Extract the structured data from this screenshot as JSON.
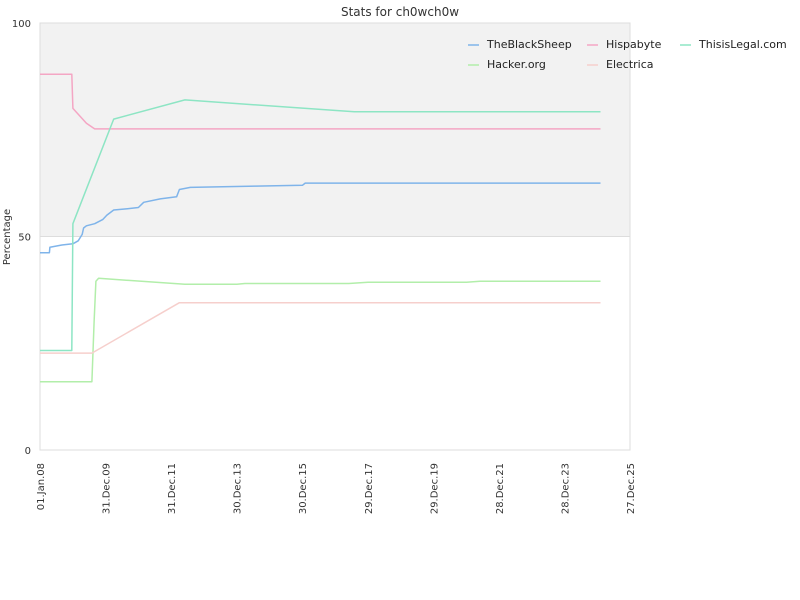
{
  "chart_data": {
    "type": "line",
    "title": "Stats for ch0wch0w",
    "ylabel": "Percentage",
    "xlabel": "",
    "ylim": [
      0,
      100
    ],
    "y_ticks": [
      "0",
      "50",
      "100"
    ],
    "x_range": [
      "2008-01-01",
      "2025-12-27"
    ],
    "x_ticks": [
      {
        "date": "2008-01-01",
        "label": "01.Jan.08"
      },
      {
        "date": "2009-12-31",
        "label": "31.Dec.09"
      },
      {
        "date": "2011-12-31",
        "label": "31.Dec.11"
      },
      {
        "date": "2013-12-30",
        "label": "30.Dec.13"
      },
      {
        "date": "2015-12-30",
        "label": "30.Dec.15"
      },
      {
        "date": "2017-12-29",
        "label": "29.Dec.17"
      },
      {
        "date": "2019-12-29",
        "label": "29.Dec.19"
      },
      {
        "date": "2021-12-28",
        "label": "28.Dec.21"
      },
      {
        "date": "2023-12-28",
        "label": "28.Dec.23"
      },
      {
        "date": "2025-12-27",
        "label": "27.Dec.25"
      }
    ],
    "grid": "shaded band 50–100, white 0–50",
    "legend_position": "top-right",
    "series": [
      {
        "name": "TheBlackSheep",
        "color": "#7fb4ea",
        "points": [
          [
            "2008-01-01",
            46.2
          ],
          [
            "2008-04-15",
            46.2
          ],
          [
            "2008-04-20",
            47.5
          ],
          [
            "2008-09-01",
            48.0
          ],
          [
            "2009-01-01",
            48.3
          ],
          [
            "2009-03-01",
            49.0
          ],
          [
            "2009-04-15",
            50.5
          ],
          [
            "2009-05-01",
            52.0
          ],
          [
            "2009-06-01",
            52.5
          ],
          [
            "2009-09-01",
            53.0
          ],
          [
            "2009-12-01",
            54.0
          ],
          [
            "2010-01-15",
            55.0
          ],
          [
            "2010-04-01",
            56.2
          ],
          [
            "2010-09-01",
            56.5
          ],
          [
            "2011-01-01",
            56.8
          ],
          [
            "2011-03-01",
            58.0
          ],
          [
            "2011-09-01",
            58.8
          ],
          [
            "2012-03-01",
            59.3
          ],
          [
            "2012-04-01",
            61.0
          ],
          [
            "2012-08-01",
            61.5
          ],
          [
            "2014-08-01",
            61.8
          ],
          [
            "2016-01-01",
            62.0
          ],
          [
            "2016-02-01",
            62.5
          ],
          [
            "2025-02-01",
            62.5
          ]
        ]
      },
      {
        "name": "Hispabyte",
        "color": "#f4a6c4",
        "points": [
          [
            "2008-01-01",
            88.0
          ],
          [
            "2008-12-20",
            88.0
          ],
          [
            "2009-01-01",
            80.0
          ],
          [
            "2009-06-01",
            76.5
          ],
          [
            "2009-09-01",
            75.2
          ],
          [
            "2025-02-01",
            75.2
          ]
        ]
      },
      {
        "name": "ThisisLegal.com",
        "color": "#8de5c4",
        "points": [
          [
            "2008-01-01",
            23.3
          ],
          [
            "2008-12-20",
            23.3
          ],
          [
            "2009-01-01",
            53.0
          ],
          [
            "2010-04-01",
            77.5
          ],
          [
            "2012-06-01",
            82.0
          ],
          [
            "2017-08-01",
            79.2
          ],
          [
            "2025-02-01",
            79.2
          ]
        ]
      },
      {
        "name": "Hacker.org",
        "color": "#b2eeaa",
        "points": [
          [
            "2008-01-01",
            16.0
          ],
          [
            "2009-08-01",
            16.0
          ],
          [
            "2009-08-25",
            30.0
          ],
          [
            "2009-09-15",
            39.5
          ],
          [
            "2009-10-15",
            40.2
          ],
          [
            "2012-06-01",
            38.8
          ],
          [
            "2014-01-01",
            38.8
          ],
          [
            "2014-04-01",
            39.0
          ],
          [
            "2017-06-01",
            39.0
          ],
          [
            "2018-01-01",
            39.3
          ],
          [
            "2021-01-01",
            39.3
          ],
          [
            "2021-06-01",
            39.5
          ],
          [
            "2025-02-01",
            39.5
          ]
        ]
      },
      {
        "name": "Electrica",
        "color": "#f6cfcc",
        "points": [
          [
            "2008-01-01",
            22.7
          ],
          [
            "2009-08-01",
            22.7
          ],
          [
            "2012-04-01",
            34.5
          ],
          [
            "2025-02-01",
            34.5
          ]
        ]
      }
    ]
  }
}
